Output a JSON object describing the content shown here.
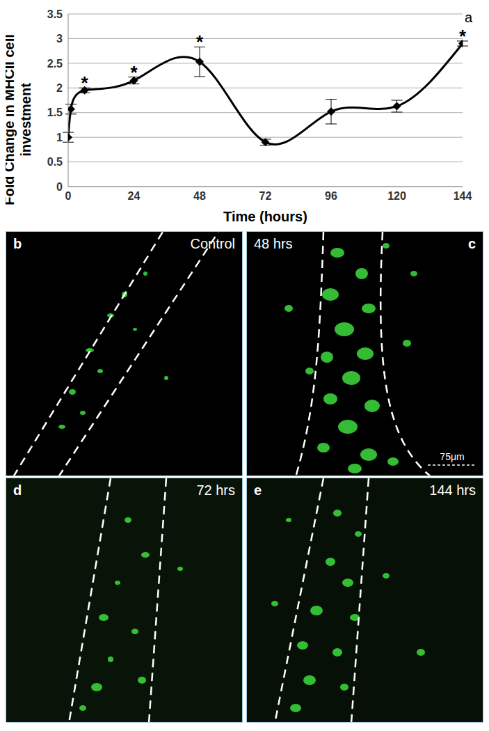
{
  "chart_data": {
    "type": "line",
    "panel_label": "a",
    "x_label": "Time (hours)",
    "y_label": "Fold Change in MHCII cell investment",
    "x": [
      0,
      1,
      6,
      24,
      48,
      72,
      96,
      120,
      144
    ],
    "values": [
      1.0,
      1.57,
      1.95,
      2.15,
      2.53,
      0.9,
      1.52,
      1.63,
      2.9
    ],
    "error": [
      0.1,
      0.1,
      0.05,
      0.07,
      0.3,
      0.06,
      0.25,
      0.12,
      0.05
    ],
    "annotations": [
      {
        "x": 6,
        "text": "*"
      },
      {
        "x": 24,
        "text": "*"
      },
      {
        "x": 48,
        "text": "*"
      },
      {
        "x": 144,
        "text": "*"
      }
    ],
    "color": "#000000",
    "marker": "diamond",
    "line_style": "smooth",
    "xlim": [
      0,
      144
    ],
    "xticks": [
      0,
      24,
      48,
      72,
      96,
      120,
      144
    ],
    "ylim": [
      0,
      3.5
    ],
    "yticks": [
      0,
      0.5,
      1,
      1.5,
      2,
      2.5,
      3,
      3.5
    ],
    "grid": true
  },
  "panels": [
    {
      "letter": "b",
      "label": "Control"
    },
    {
      "letter": "c",
      "label": "48 hrs",
      "scale_bar": "75μm"
    },
    {
      "letter": "d",
      "label": "72 hrs"
    },
    {
      "letter": "e",
      "label": "144 hrs"
    }
  ]
}
